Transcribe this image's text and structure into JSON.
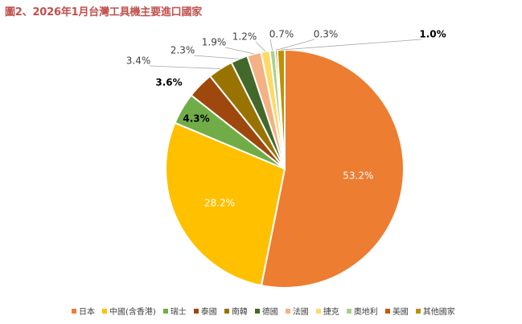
{
  "chart_data": {
    "type": "pie",
    "title": "圖2、2026年1月台灣工具機主要進口國家",
    "slices": [
      {
        "label": "日本",
        "value": 53.2,
        "value_label": "53.2%",
        "color": "#ed7d31"
      },
      {
        "label": "中國(含香港)",
        "value": 28.2,
        "value_label": "28.2%",
        "color": "#ffc000"
      },
      {
        "label": "瑞士",
        "value": 4.3,
        "value_label": "4.3%",
        "color": "#70ad47"
      },
      {
        "label": "泰國",
        "value": 3.6,
        "value_label": "3.6%",
        "color": "#9e480e"
      },
      {
        "label": "南韓",
        "value": 3.4,
        "value_label": "3.4%",
        "color": "#997300"
      },
      {
        "label": "德國",
        "value": 2.3,
        "value_label": "2.3%",
        "color": "#43682b"
      },
      {
        "label": "法國",
        "value": 1.9,
        "value_label": "1.9%",
        "color": "#f4b183"
      },
      {
        "label": "捷克",
        "value": 1.2,
        "value_label": "1.2%",
        "color": "#ffd966"
      },
      {
        "label": "奧地利",
        "value": 0.7,
        "value_label": "0.7%",
        "color": "#a9d18e"
      },
      {
        "label": "美國",
        "value": 0.3,
        "value_label": "0.3%",
        "color": "#c55a11"
      },
      {
        "label": "其他國家",
        "value": 1.0,
        "value_label": "1.0%",
        "color": "#bf9000"
      }
    ],
    "legend_position": "bottom-right"
  }
}
